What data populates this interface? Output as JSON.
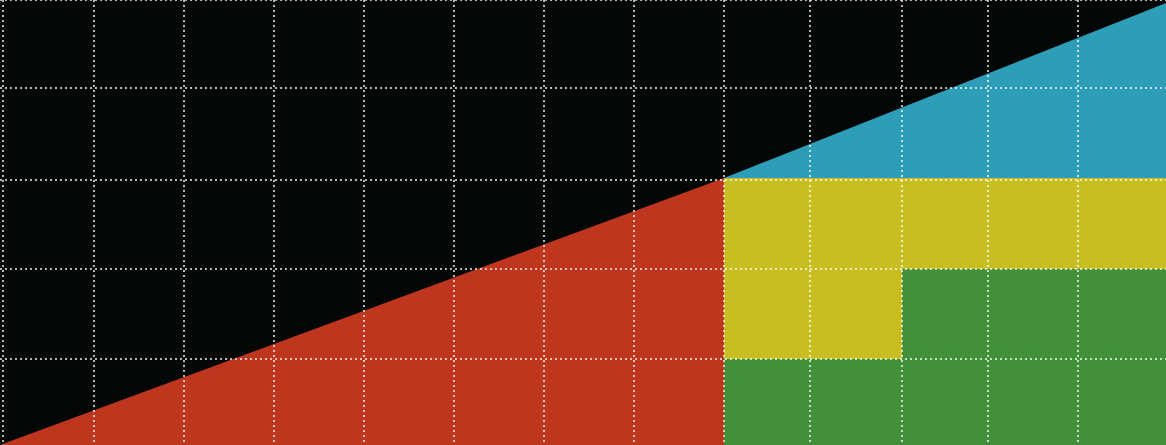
{
  "colors": {
    "background": "#050707",
    "red": "#bf361f",
    "blue": "#2e9db8",
    "yellow": "#c8be22",
    "green": "#42903a",
    "grid": "#ffffff"
  },
  "shapes": [
    {
      "name": "red-triangle",
      "color": "red"
    },
    {
      "name": "blue-triangle",
      "color": "blue"
    },
    {
      "name": "yellow-polygon",
      "color": "yellow"
    },
    {
      "name": "green-polygon",
      "color": "green"
    }
  ],
  "grid": {
    "visible": true,
    "style": "dotted"
  }
}
